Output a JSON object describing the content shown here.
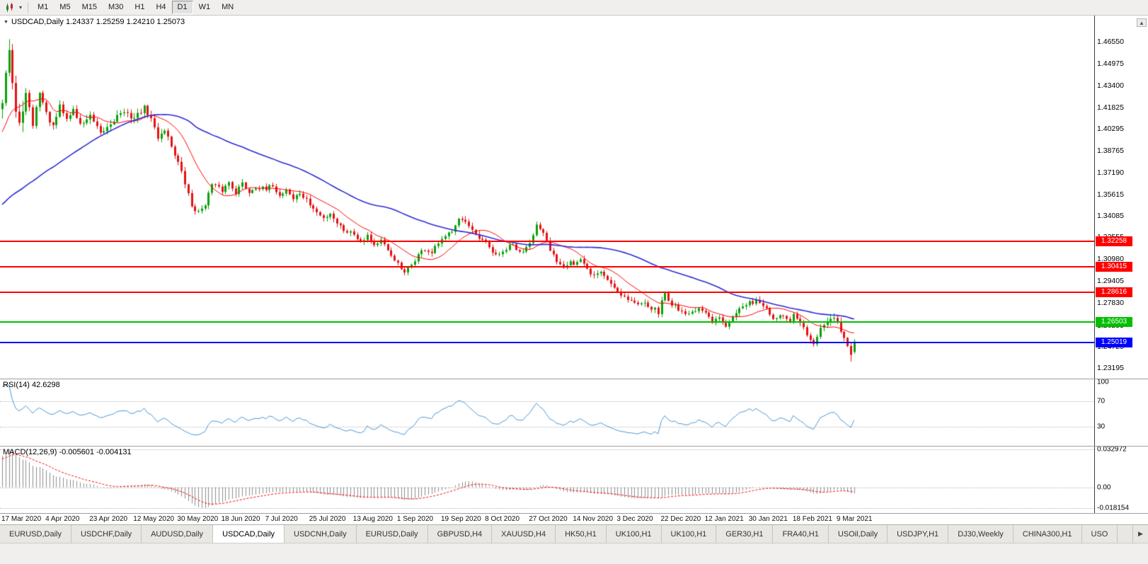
{
  "toolbar": {
    "timeframes": [
      "M1",
      "M5",
      "M15",
      "M30",
      "H1",
      "H4",
      "D1",
      "W1",
      "MN"
    ],
    "active_timeframe": "D1"
  },
  "icons": {
    "dropdown_caret": "▾",
    "collapse_marker": "▼",
    "scroll_up": "▲",
    "tab_scroll_right": "▶"
  },
  "chart": {
    "title_line": "USDCAD,Daily 1.24337 1.25259 1.24210 1.25073"
  },
  "price_axis": {
    "min": 1.2243,
    "max": 1.4842,
    "ticks": [
      "1.46550",
      "1.44975",
      "1.43400",
      "1.41825",
      "1.40295",
      "1.38765",
      "1.37190",
      "1.35615",
      "1.34085",
      "1.32555",
      "1.30980",
      "1.29405",
      "1.27830",
      "1.26255",
      "1.24725",
      "1.23195"
    ]
  },
  "levels": [
    {
      "price": 1.32258,
      "label": "1.32258",
      "color": "#FF0000"
    },
    {
      "price": 1.30415,
      "label": "1.30415",
      "color": "#FF0000"
    },
    {
      "price": 1.28616,
      "label": "1.28616",
      "color": "#FF0000"
    },
    {
      "price": 1.26503,
      "label": "1.26503",
      "color": "#00C000"
    },
    {
      "price": 1.25019,
      "label": "1.25019",
      "color": "#0000FF"
    }
  ],
  "rsi": {
    "label": "RSI(14) 42.6298",
    "value": 42.6298,
    "period": 14,
    "color": "#4A96D2",
    "axis": {
      "min": 0,
      "max": 105
    },
    "ticks": [
      {
        "v": 100,
        "l": "100",
        "grid": false
      },
      {
        "v": 70,
        "l": "70",
        "grid": true
      },
      {
        "v": 30,
        "l": "30",
        "grid": true
      }
    ]
  },
  "macd": {
    "label": "MACD(12,26,9) -0.005601 -0.004131",
    "main_value": -0.005601,
    "signal_value": -0.004131,
    "fast": 12,
    "slow": 26,
    "signal": 9,
    "hist_color": "#8C8C8C",
    "signal_color": "#FF0000",
    "axis": {
      "min": -0.0225,
      "max": 0.0355
    },
    "ticks": [
      {
        "v": 0.032972,
        "l": "0.032972",
        "grid": true
      },
      {
        "v": 0,
        "l": "0.00",
        "grid": true
      },
      {
        "v": -0.018154,
        "l": "-0.018154",
        "grid": true
      }
    ]
  },
  "date_axis": [
    "17 Mar 2020",
    "4 Apr 2020",
    "23 Apr 2020",
    "12 May 2020",
    "30 May 2020",
    "18 Jun 2020",
    "7 Jul 2020",
    "25 Jul 2020",
    "13 Aug 2020",
    "1 Sep 2020",
    "19 Sep 2020",
    "8 Oct 2020",
    "27 Oct 2020",
    "14 Nov 2020",
    "3 Dec 2020",
    "22 Dec 2020",
    "12 Jan 2021",
    "30 Jan 2021",
    "18 Feb 2021",
    "9 Mar 2021"
  ],
  "tabs": {
    "items": [
      {
        "label": "EURUSD,Daily",
        "active": false
      },
      {
        "label": "USDCHF,Daily",
        "active": false
      },
      {
        "label": "AUDUSD,Daily",
        "active": false
      },
      {
        "label": "USDCAD,Daily",
        "active": true
      },
      {
        "label": "USDCNH,Daily",
        "active": false
      },
      {
        "label": "EURUSD,Daily",
        "active": false
      },
      {
        "label": "GBPUSD,H4",
        "active": false
      },
      {
        "label": "XAUUSD,H4",
        "active": false
      },
      {
        "label": "HK50,H1",
        "active": false
      },
      {
        "label": "UK100,H1",
        "active": false
      },
      {
        "label": "UK100,H1",
        "active": false
      },
      {
        "label": "GER30,H1",
        "active": false
      },
      {
        "label": "FRA40,H1",
        "active": false
      },
      {
        "label": "USOil,Daily",
        "active": false
      },
      {
        "label": "USDJPY,H1",
        "active": false
      },
      {
        "label": "DJ30,Weekly",
        "active": false
      },
      {
        "label": "CHINA300,H1",
        "active": false
      },
      {
        "label": "USO",
        "active": false
      }
    ]
  },
  "chart_data": {
    "type": "candlestick",
    "symbol": "USDCAD",
    "timeframe": "Daily",
    "bars_total": 253,
    "prehistory_bars": 60,
    "seed": 42,
    "last_bar": {
      "o": 1.24337,
      "h": 1.25259,
      "l": 1.2421,
      "c": 1.25073
    },
    "forced_high": {
      "index": 2,
      "high": 1.4655
    },
    "forced_low": {
      "index": 251,
      "low": 1.2365
    },
    "prehistory": {
      "base": 1.324,
      "peak": 1.423
    },
    "ma": [
      {
        "period": 13,
        "color": "#FF0000",
        "width": 1
      },
      {
        "period": 55,
        "color": "#2B2BD5",
        "width": 1.6
      }
    ],
    "colors": {
      "bull": "#0AA10A",
      "bear": "#E31212",
      "background": "#FFFFFF"
    },
    "waypoints": [
      [
        0,
        1.423
      ],
      [
        1,
        1.445
      ],
      [
        2,
        1.46
      ],
      [
        3,
        1.436
      ],
      [
        4,
        1.415
      ],
      [
        5,
        1.406
      ],
      [
        7,
        1.428
      ],
      [
        9,
        1.406
      ],
      [
        11,
        1.43
      ],
      [
        13,
        1.414
      ],
      [
        15,
        1.404
      ],
      [
        17,
        1.419
      ],
      [
        19,
        1.41
      ],
      [
        21,
        1.417
      ],
      [
        23,
        1.406
      ],
      [
        26,
        1.412
      ],
      [
        29,
        1.399
      ],
      [
        32,
        1.407
      ],
      [
        35,
        1.415
      ],
      [
        39,
        1.411
      ],
      [
        42,
        1.418
      ],
      [
        44,
        1.41
      ],
      [
        46,
        1.397
      ],
      [
        48,
        1.403
      ],
      [
        50,
        1.391
      ],
      [
        52,
        1.379
      ],
      [
        54,
        1.364
      ],
      [
        56,
        1.348
      ],
      [
        58,
        1.343
      ],
      [
        60,
        1.35
      ],
      [
        62,
        1.363
      ],
      [
        65,
        1.359
      ],
      [
        67,
        1.365
      ],
      [
        69,
        1.358
      ],
      [
        71,
        1.364
      ],
      [
        73,
        1.358
      ],
      [
        75,
        1.362
      ],
      [
        78,
        1.359
      ],
      [
        80,
        1.363
      ],
      [
        82,
        1.355
      ],
      [
        84,
        1.36
      ],
      [
        86,
        1.353
      ],
      [
        88,
        1.357
      ],
      [
        91,
        1.349
      ],
      [
        93,
        1.343
      ],
      [
        95,
        1.339
      ],
      [
        97,
        1.343
      ],
      [
        99,
        1.336
      ],
      [
        101,
        1.331
      ],
      [
        104,
        1.328
      ],
      [
        106,
        1.323
      ],
      [
        108,
        1.327
      ],
      [
        110,
        1.32
      ],
      [
        112,
        1.323
      ],
      [
        114,
        1.315
      ],
      [
        116,
        1.31
      ],
      [
        117,
        1.306
      ],
      [
        119,
        1.299
      ],
      [
        121,
        1.306
      ],
      [
        123,
        1.313
      ],
      [
        125,
        1.317
      ],
      [
        127,
        1.314
      ],
      [
        129,
        1.321
      ],
      [
        131,
        1.325
      ],
      [
        133,
        1.331
      ],
      [
        135,
        1.34
      ],
      [
        137,
        1.336
      ],
      [
        139,
        1.329
      ],
      [
        141,
        1.324
      ],
      [
        143,
        1.321
      ],
      [
        145,
        1.315
      ],
      [
        147,
        1.312
      ],
      [
        149,
        1.317
      ],
      [
        151,
        1.32
      ],
      [
        153,
        1.314
      ],
      [
        155,
        1.319
      ],
      [
        156,
        1.323
      ],
      [
        158,
        1.334
      ],
      [
        160,
        1.327
      ],
      [
        162,
        1.316
      ],
      [
        164,
        1.309
      ],
      [
        166,
        1.305
      ],
      [
        168,
        1.309
      ],
      [
        169,
        1.306
      ],
      [
        171,
        1.309
      ],
      [
        173,
        1.302
      ],
      [
        175,
        1.298
      ],
      [
        177,
        1.301
      ],
      [
        179,
        1.295
      ],
      [
        181,
        1.29
      ],
      [
        182,
        1.287
      ],
      [
        184,
        1.283
      ],
      [
        186,
        1.28
      ],
      [
        188,
        1.277
      ],
      [
        190,
        1.28
      ],
      [
        192,
        1.275
      ],
      [
        194,
        1.272
      ],
      [
        196,
        1.286
      ],
      [
        197,
        1.28
      ],
      [
        199,
        1.276
      ],
      [
        201,
        1.273
      ],
      [
        203,
        1.27
      ],
      [
        205,
        1.274
      ],
      [
        208,
        1.271
      ],
      [
        210,
        1.264
      ],
      [
        212,
        1.268
      ],
      [
        214,
        1.263
      ],
      [
        216,
        1.27
      ],
      [
        218,
        1.274
      ],
      [
        221,
        1.278
      ],
      [
        223,
        1.281
      ],
      [
        225,
        1.277
      ],
      [
        227,
        1.27
      ],
      [
        229,
        1.266
      ],
      [
        231,
        1.27
      ],
      [
        233,
        1.264
      ],
      [
        234,
        1.269
      ],
      [
        236,
        1.264
      ],
      [
        238,
        1.256
      ],
      [
        240,
        1.248
      ],
      [
        242,
        1.26
      ],
      [
        244,
        1.265
      ],
      [
        246,
        1.266
      ],
      [
        247,
        1.264
      ],
      [
        249,
        1.253
      ],
      [
        250,
        1.247
      ],
      [
        251,
        1.24
      ],
      [
        252,
        1.2507
      ]
    ]
  }
}
